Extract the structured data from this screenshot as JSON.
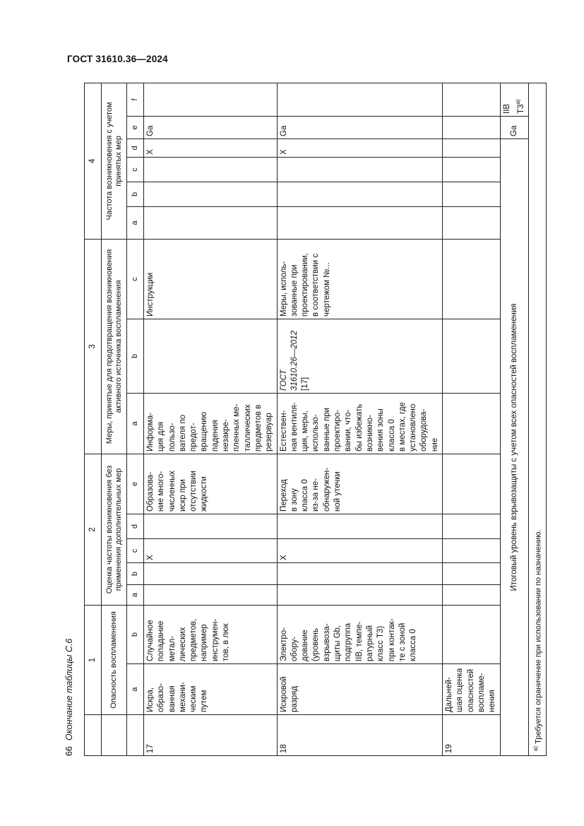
{
  "header": {
    "doc_code": "ГОСТ 31610.36—2024",
    "page_number": "66",
    "caption": "Окончание таблицы С.6"
  },
  "table": {
    "group_numbers": [
      "1",
      "2",
      "3",
      "4"
    ],
    "group_titles": [
      "Опасность воспламенения",
      "Оценка частоты возникновения без применения дополнительных мер",
      "Меры, принятые для предотвращения возникновения активного источника воспламенения",
      "Частота возникновения с учетом принятых мер"
    ],
    "letters": {
      "g1": [
        "a",
        "b"
      ],
      "g2": [
        "a",
        "b",
        "c",
        "d",
        "e"
      ],
      "g3": [
        "a",
        "b",
        "c"
      ],
      "g4": [
        "a",
        "b",
        "c",
        "d",
        "e",
        "f"
      ]
    },
    "rows": [
      {
        "num": "17",
        "c1a": "Искра,\nобразо-\nванная\nмехани-\nческим\nпутем",
        "c1b": "Случайное\nпопадание\nметал-\nлических\nпредметов,\nнапример\nинструмен-\nтов, в люк",
        "c2c": "X",
        "c2e": "Образова-\nние много-\nчисленных\nискр при\nотсутствии\nжидкости",
        "c3a": "Информа-\nция для\nпользо-\nвателя по\nпредот-\nвращению\nпадения\nнезакре-\nпленных ме-\nталлических\nпредметов в\nрезервуар",
        "c3c": "Инструкции",
        "c4d": "X",
        "c4e": "Ga"
      },
      {
        "num": "18",
        "c1a": "Искровой\nразряд",
        "c1b": "Электро-\nобору-\nдование\n(уровень\nвзрывоза-\nщиты Gb,\nподгруппа\nIIB, темпе-\nратурный\nкласс Т3)\nпри контак-\nте с зоной\nкласса 0",
        "c2c": "X",
        "c2e": "Переход\nв зону\nкласса 0\nиз-за не-\nобнаружен-\nной утечки",
        "c3a": "Естествен-\nная вентиля-\nция, меры,\nиспользо-\nванные при\nпроектиро-\nвании, что-\nбы избежать\nвозникно-\nвения зоны\nкласса 0\nв местах, где\nустановлено\nоборудова-\nние",
        "c3b_std": "ГОСТ\n31610.26—2012",
        "c3b_ref": "[17]",
        "c3c": "Меры, исполь-\nзованные при\nпроектировании,\nв соответствии с\nчертежом №...",
        "c4d": "X",
        "c4e": "Ga"
      },
      {
        "num": "19",
        "c1a": "Дальней-\nшая оценка\nопасностей\nвоспламе-\nнения"
      }
    ],
    "total": {
      "label": "Итоговый уровень взрывозащиты с учетом всех опасностей воспламенения",
      "e": "Ga",
      "f": "IIB\nT3",
      "f_sup": "а)"
    },
    "footnote": {
      "mark": "а)",
      "text": "Требуется ограничение при использовании по назначению."
    }
  }
}
